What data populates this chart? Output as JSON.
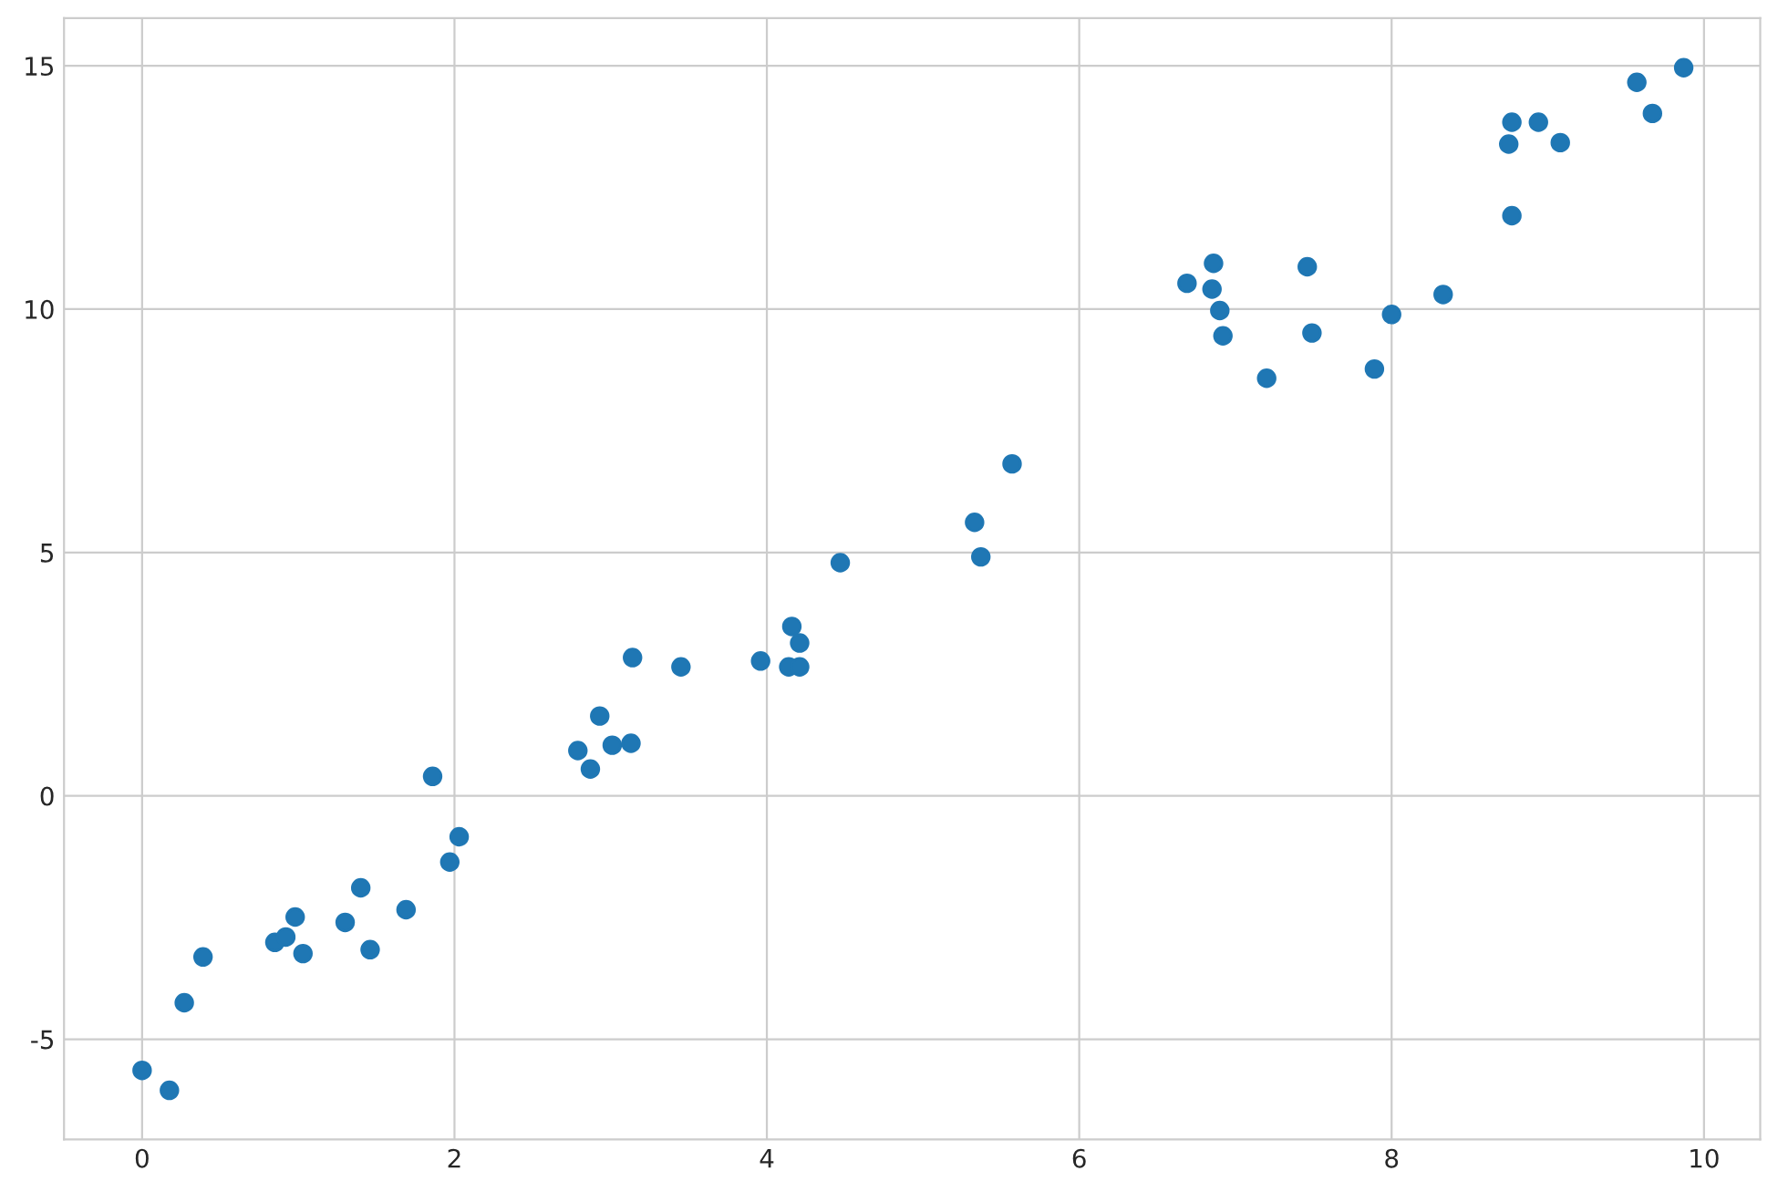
{
  "chart_data": {
    "type": "scatter",
    "color": "#1f77b4",
    "marker": "circle",
    "grid": true,
    "x": [
      0.0,
      0.175,
      0.27,
      0.39,
      0.85,
      0.92,
      0.98,
      1.03,
      1.3,
      1.4,
      1.46,
      1.69,
      1.86,
      1.97,
      2.03,
      2.79,
      2.87,
      2.93,
      3.01,
      3.13,
      3.14,
      3.45,
      3.96,
      4.16,
      4.14,
      4.21,
      4.21,
      4.47,
      5.33,
      5.37,
      5.57,
      6.69,
      6.86,
      6.85,
      6.9,
      6.92,
      7.2,
      7.46,
      7.49,
      7.89,
      8.0,
      8.33,
      8.75,
      8.77,
      8.77,
      8.94,
      9.08,
      9.57,
      9.67,
      9.87
    ],
    "values": [
      -5.64,
      -6.05,
      -4.25,
      -3.31,
      -3.01,
      -2.9,
      -2.49,
      -3.24,
      -2.6,
      -1.89,
      -3.16,
      -2.34,
      0.4,
      -1.36,
      -0.84,
      0.93,
      0.55,
      1.64,
      1.04,
      1.08,
      2.84,
      2.65,
      2.77,
      3.48,
      2.65,
      2.65,
      3.14,
      4.79,
      5.62,
      4.91,
      6.82,
      10.53,
      10.94,
      10.41,
      9.97,
      9.45,
      8.58,
      10.87,
      9.51,
      8.77,
      9.89,
      10.3,
      13.39,
      13.84,
      11.92,
      13.84,
      13.42,
      14.66,
      14.02,
      14.96
    ],
    "xlim": [
      -0.5,
      10.36
    ],
    "ylim": [
      -7.06,
      15.98
    ],
    "xticks": [
      0,
      2,
      4,
      6,
      8,
      10
    ],
    "yticks": [
      -5,
      0,
      5,
      10,
      15
    ]
  }
}
